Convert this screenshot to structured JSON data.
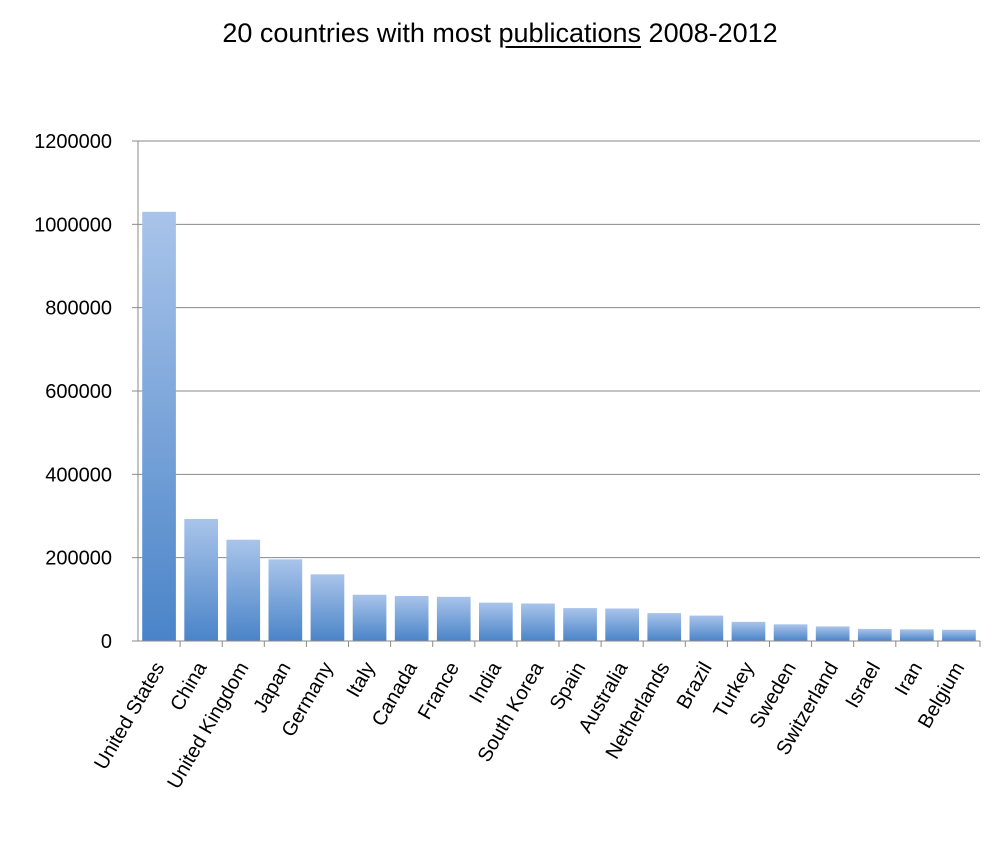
{
  "chart_data": {
    "type": "bar",
    "title_pre": "20 countries with most ",
    "title_link": "publications",
    "title_post": " 2008-2012",
    "categories": [
      "United States",
      "China",
      "United Kingdom",
      "Japan",
      "Germany",
      "Italy",
      "Canada",
      "France",
      "India",
      "South Korea",
      "Spain",
      "Australia",
      "Netherlands",
      "Brazil",
      "Turkey",
      "Sweden",
      "Switzerland",
      "Israel",
      "Iran",
      "Belgium"
    ],
    "values": [
      1030000,
      293000,
      243000,
      196000,
      160000,
      111000,
      108000,
      106000,
      92000,
      90000,
      79000,
      78000,
      67000,
      61000,
      46000,
      40000,
      35000,
      29000,
      28000,
      27000
    ],
    "yticks": [
      "0",
      "200000",
      "400000",
      "600000",
      "800000",
      "1000000",
      "1200000"
    ],
    "ylim": [
      0,
      1200000
    ],
    "grid": true,
    "legend": "none",
    "colors": {
      "bar_top": "#a9c4ea",
      "bar_bottom": "#4a84c8",
      "grid": "#8a8a8a",
      "axis": "#8a8a8a"
    }
  }
}
